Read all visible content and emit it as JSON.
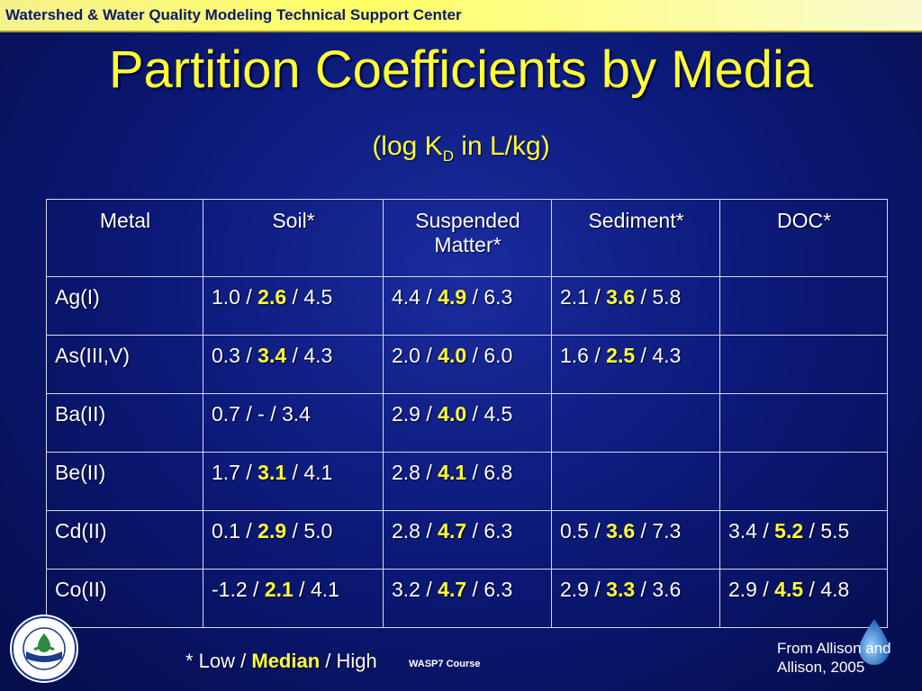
{
  "header": {
    "text": "Watershed & Water Quality Modeling Technical Support Center"
  },
  "title": "Partition Coefficients by Media",
  "subtitle": {
    "prefix": "(log K",
    "subscript": "D",
    "suffix": " in L/kg)"
  },
  "table": {
    "columns": [
      "Metal",
      "Soil*",
      "Suspended Matter*",
      "Sediment*",
      "DOC*"
    ],
    "rows": [
      {
        "metal": "Ag(I)",
        "soil": {
          "low": "1.0",
          "median": "2.6",
          "high": "4.5"
        },
        "suspended": {
          "low": "4.4",
          "median": "4.9",
          "high": "6.3"
        },
        "sediment": {
          "low": "2.1",
          "median": "3.6",
          "high": "5.8"
        },
        "doc": null
      },
      {
        "metal": "As(III,V)",
        "soil": {
          "low": "0.3",
          "median": "3.4",
          "high": "4.3"
        },
        "suspended": {
          "low": "2.0",
          "median": "4.0",
          "high": "6.0"
        },
        "sediment": {
          "low": "1.6",
          "median": "2.5",
          "high": "4.3"
        },
        "doc": null
      },
      {
        "metal": "Ba(II)",
        "soil": {
          "low": "0.7",
          "median": "-",
          "high": "3.4"
        },
        "suspended": {
          "low": "2.9",
          "median": "4.0",
          "high": "4.5"
        },
        "sediment": null,
        "doc": null
      },
      {
        "metal": "Be(II)",
        "soil": {
          "low": "1.7",
          "median": "3.1",
          "high": "4.1"
        },
        "suspended": {
          "low": "2.8",
          "median": "4.1",
          "high": "6.8"
        },
        "sediment": null,
        "doc": null
      },
      {
        "metal": "Cd(II)",
        "soil": {
          "low": "0.1",
          "median": "2.9",
          "high": "5.0"
        },
        "suspended": {
          "low": "2.8",
          "median": "4.7",
          "high": "6.3"
        },
        "sediment": {
          "low": "0.5",
          "median": "3.6",
          "high": "7.3"
        },
        "doc": {
          "low": "3.4",
          "median": "5.2",
          "high": "5.5"
        }
      },
      {
        "metal": "Co(II)",
        "soil": {
          "low": "-1.2",
          "median": "2.1",
          "high": "4.1"
        },
        "suspended": {
          "low": "3.2",
          "median": "4.7",
          "high": "6.3"
        },
        "sediment": {
          "low": "2.9",
          "median": "3.3",
          "high": "3.6"
        },
        "doc": {
          "low": "2.9",
          "median": "4.5",
          "high": "4.8"
        }
      }
    ]
  },
  "footnote": {
    "prefix": "* Low / ",
    "median": "Median",
    "suffix": " / High"
  },
  "course": "WASP7 Course",
  "credit": {
    "line1": "From Allison and",
    "line2": "Allison, 2005"
  },
  "logo": {
    "name": "epa-seal-icon",
    "ring_text": "UNITED STATES ENVIRONMENTAL PROTECTION AGENCY"
  },
  "colors": {
    "accent": "#ffff33",
    "background": "#0c1a7a",
    "header": "#ffff66"
  }
}
